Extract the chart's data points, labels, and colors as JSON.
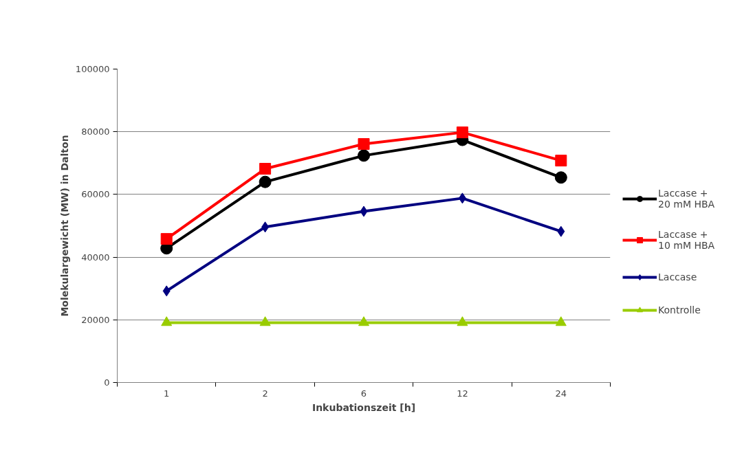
{
  "chart_data": {
    "type": "line",
    "xlabel": "Inkubationszeit [h]",
    "ylabel": "Molekulargewicht (MW) in Dalton",
    "categories": [
      "1",
      "2",
      "6",
      "12",
      "24"
    ],
    "ylim": [
      0,
      100000
    ],
    "yticks": [
      0,
      20000,
      40000,
      60000,
      80000,
      100000
    ],
    "grid": "y",
    "legend": "right",
    "series": [
      {
        "name": "Laccase + 20 mM HBA",
        "color": "#000000",
        "marker": "circle",
        "values": [
          42800,
          64000,
          72400,
          77400,
          65400
        ]
      },
      {
        "name": "Laccase + 10 mM HBA",
        "color": "#ff0000",
        "marker": "square",
        "values": [
          45800,
          68200,
          76100,
          79800,
          70800
        ]
      },
      {
        "name": "Laccase",
        "color": "#000080",
        "marker": "diamond",
        "values": [
          29200,
          49600,
          54600,
          58800,
          48200
        ]
      },
      {
        "name": "Kontrolle",
        "color": "#99cc00",
        "marker": "triangle",
        "values": [
          19100,
          19100,
          19100,
          19100,
          19100
        ]
      }
    ]
  }
}
